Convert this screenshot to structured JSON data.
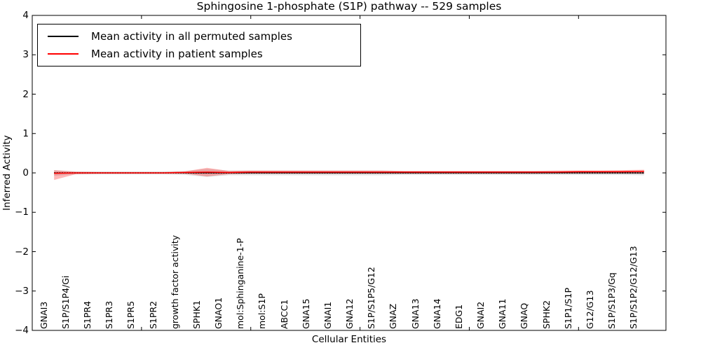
{
  "figure": {
    "title": "Sphingosine 1-phosphate (S1P) pathway -- 529 samples",
    "xlabel": "Cellular Entities",
    "ylabel": "Inferred Activity"
  },
  "legend": {
    "items": [
      {
        "label": "Mean activity in all permuted samples",
        "color": "#000000"
      },
      {
        "label": "Mean activity in patient samples",
        "color": "#ff0000"
      }
    ]
  },
  "chart_data": {
    "type": "line",
    "title": "Sphingosine 1-phosphate (S1P) pathway -- 529 samples",
    "xlabel": "Cellular Entities",
    "ylabel": "Inferred Activity",
    "xlim": [
      0,
      29
    ],
    "ylim": [
      -4,
      4
    ],
    "grid": false,
    "legend_position": "upper left",
    "yticks": [
      -4,
      -3,
      -2,
      -1,
      0,
      1,
      2,
      3,
      4
    ],
    "ytick_labels": [
      "−4",
      "−3",
      "−2",
      "−1",
      "0",
      "1",
      "2",
      "3",
      "4"
    ],
    "xtick_values": [
      5,
      10,
      15,
      20,
      25
    ],
    "categories": [
      "GNAI3",
      "S1P/S1P4/Gi",
      "S1PR4",
      "S1PR3",
      "S1PR5",
      "S1PR2",
      "growth factor activity",
      "SPHK1",
      "GNAO1",
      "mol:Sphinganine-1-P",
      "mol:S1P",
      "ABCC1",
      "GNA15",
      "GNAI1",
      "GNA12",
      "S1P/S1P5/G12",
      "GNAZ",
      "GNA13",
      "GNA14",
      "EDG1",
      "GNAI2",
      "GNA11",
      "GNAQ",
      "SPHK2",
      "S1P1/S1P",
      "G12/G13",
      "S1P/S1P3/Gq",
      "S1P/S1P2/G12/G13"
    ],
    "series": [
      {
        "name": "Mean activity in all permuted samples",
        "color": "#000000",
        "style": "dashed",
        "values": [
          0,
          0,
          0,
          0,
          0,
          0,
          0,
          0,
          0,
          0,
          0,
          0,
          0,
          0,
          0,
          0,
          0,
          0,
          0,
          0,
          0,
          0,
          0,
          0,
          0,
          0,
          0,
          0
        ]
      },
      {
        "name": "Mean activity in patient samples",
        "color": "#ff0000",
        "style": "solid",
        "values": [
          -0.01,
          0,
          0,
          0,
          0,
          0,
          0.01,
          0.02,
          0.01,
          0.02,
          0.02,
          0.02,
          0.02,
          0.02,
          0.02,
          0.02,
          0.02,
          0.02,
          0.02,
          0.02,
          0.02,
          0.02,
          0.02,
          0.02,
          0.03,
          0.03,
          0.03,
          0.04
        ]
      }
    ],
    "bands": [
      {
        "name": "permuted-samples-range",
        "color": "#999999",
        "opacity": 0.3,
        "upper": [
          0.07,
          0.04,
          0.04,
          0.04,
          0.04,
          0.04,
          0.05,
          0.1,
          0.06,
          0.06,
          0.06,
          0.06,
          0.06,
          0.06,
          0.06,
          0.06,
          0.05,
          0.05,
          0.05,
          0.05,
          0.05,
          0.05,
          0.05,
          0.05,
          0.05,
          0.05,
          0.05,
          0.05
        ],
        "lower": [
          -0.07,
          -0.04,
          -0.04,
          -0.04,
          -0.04,
          -0.04,
          -0.05,
          -0.1,
          -0.06,
          -0.06,
          -0.06,
          -0.06,
          -0.06,
          -0.06,
          -0.06,
          -0.06,
          -0.05,
          -0.05,
          -0.05,
          -0.05,
          -0.05,
          -0.05,
          -0.05,
          -0.05,
          -0.05,
          -0.05,
          -0.05,
          -0.06
        ]
      },
      {
        "name": "patient-samples-range",
        "color": "#ff0000",
        "opacity": 0.28,
        "upper": [
          0.07,
          0.03,
          0.02,
          0.02,
          0.02,
          0.02,
          0.04,
          0.13,
          0.05,
          0.06,
          0.06,
          0.06,
          0.06,
          0.06,
          0.06,
          0.06,
          0.05,
          0.05,
          0.05,
          0.05,
          0.05,
          0.05,
          0.05,
          0.06,
          0.06,
          0.06,
          0.07,
          0.08
        ],
        "lower": [
          -0.18,
          -0.03,
          -0.02,
          -0.02,
          -0.02,
          -0.02,
          -0.02,
          -0.09,
          -0.03,
          -0.02,
          -0.02,
          -0.02,
          -0.02,
          -0.02,
          -0.02,
          -0.02,
          -0.02,
          -0.02,
          -0.02,
          -0.02,
          -0.02,
          -0.02,
          -0.02,
          -0.01,
          -0.01,
          -0.01,
          -0.01,
          -0.02
        ]
      }
    ]
  }
}
